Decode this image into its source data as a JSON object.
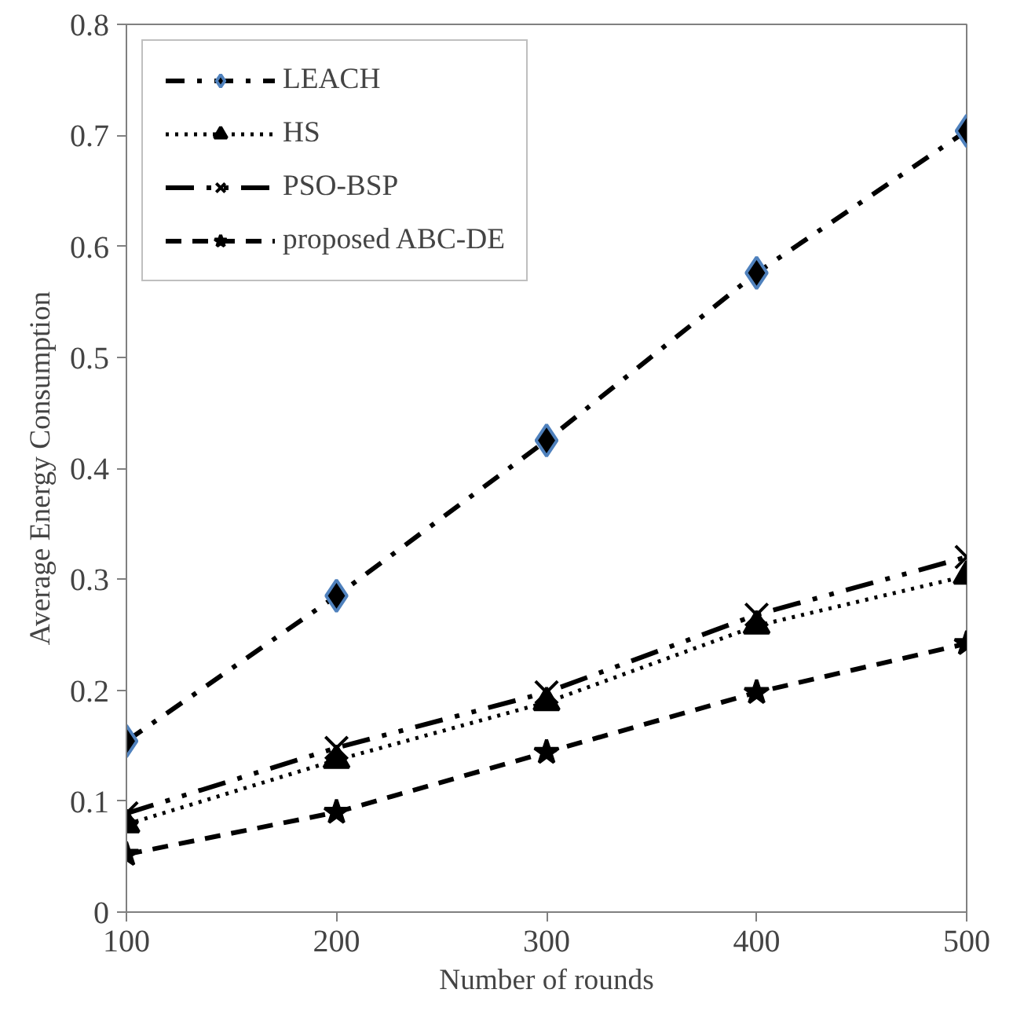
{
  "chart_data": {
    "type": "line",
    "xlabel": "Number of rounds",
    "ylabel": "Average Energy Consumption",
    "x": [
      100,
      200,
      300,
      400,
      500
    ],
    "series": [
      {
        "name": "LEACH",
        "color": "#000000",
        "marker": "diamond",
        "line_style": "dashdot",
        "values": [
          0.154,
          0.285,
          0.425,
          0.576,
          0.704
        ]
      },
      {
        "name": "HS",
        "color": "#000000",
        "marker": "triangle",
        "line_style": "dotted",
        "values": [
          0.079,
          0.137,
          0.189,
          0.258,
          0.303
        ]
      },
      {
        "name": "PSO-BSP",
        "color": "#000000",
        "marker": "cross",
        "line_style": "dashdotdot",
        "values": [
          0.089,
          0.148,
          0.198,
          0.268,
          0.32
        ]
      },
      {
        "name": "proposed ABC-DE",
        "color": "#000000",
        "marker": "star",
        "line_style": "dashed",
        "values": [
          0.052,
          0.09,
          0.144,
          0.198,
          0.242
        ]
      }
    ],
    "xlim": [
      100,
      500
    ],
    "xticks": [
      100,
      200,
      300,
      400,
      500
    ],
    "ylim": [
      0,
      0.8
    ],
    "yticks": [
      0,
      {
        "value": 0.1,
        "label": "0.1"
      },
      {
        "value": 0.2,
        "label": "0.2"
      },
      {
        "value": 0.3,
        "label": "0.3"
      },
      {
        "value": 0.4,
        "label": "0.4"
      },
      {
        "value": 0.5,
        "label": "0.5"
      },
      {
        "value": 0.6,
        "label": "0.6"
      },
      {
        "value": 0.7,
        "label": "0.7"
      },
      {
        "value": 0.8,
        "label": "0.8"
      }
    ],
    "grid": false,
    "legend": "top left"
  }
}
